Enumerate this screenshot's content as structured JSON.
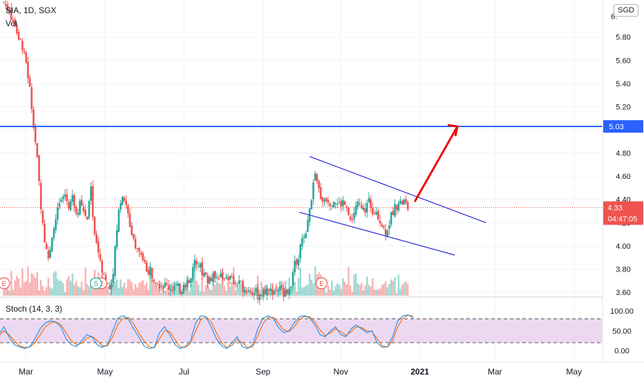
{
  "header": {
    "symbol_line": "SIA, 1D, SGX",
    "volume_label": "Vol",
    "currency": "SGD",
    "stoch_label": "Stoch (14, 3, 3)"
  },
  "colors": {
    "up": "#26a69a",
    "down": "#ef5350",
    "resistance": "#2962ff",
    "channel": "#2626d6",
    "arrow": "#f20000",
    "stoch_k": "#2196f3",
    "stoch_d": "#ff6d00",
    "stoch_band": "#e1bee7"
  },
  "chart_data": {
    "type": "candlestick",
    "price_axis": {
      "ticks": [
        3.6,
        3.8,
        4.0,
        4.2,
        4.4,
        4.6,
        4.8,
        5.0,
        5.2,
        5.4,
        5.6,
        5.8
      ],
      "tick_labels": [
        "3.60",
        "3.80",
        "4.00",
        "4.20",
        "4.40",
        "4.60",
        "4.80",
        "5.00",
        "5.20",
        "5.40",
        "5.60",
        "5.80"
      ],
      "top_partial_label": "6.",
      "range": [
        3.57,
        6.12
      ]
    },
    "time_axis": {
      "labels": [
        "Mar",
        "May",
        "Jul",
        "Sep",
        "Nov",
        "2021",
        "Mar",
        "May"
      ],
      "label_days": [
        35,
        96,
        157,
        218,
        278,
        339,
        397,
        458
      ],
      "range_days": [
        15,
        480
      ]
    },
    "price_path": [
      [
        18,
        6.1
      ],
      [
        22,
        6.02
      ],
      [
        26,
        5.95
      ],
      [
        30,
        5.78
      ],
      [
        34,
        5.68
      ],
      [
        38,
        5.35
      ],
      [
        41,
        5.05
      ],
      [
        44,
        4.7
      ],
      [
        47,
        4.3
      ],
      [
        50,
        4.0
      ],
      [
        53,
        3.87
      ],
      [
        56,
        4.1
      ],
      [
        59,
        4.3
      ],
      [
        62,
        4.38
      ],
      [
        65,
        4.45
      ],
      [
        68,
        4.35
      ],
      [
        71,
        4.42
      ],
      [
        74,
        4.3
      ],
      [
        78,
        4.38
      ],
      [
        82,
        4.2
      ],
      [
        85,
        4.5
      ],
      [
        88,
        4.1
      ],
      [
        91,
        3.95
      ],
      [
        94,
        3.8
      ],
      [
        97,
        3.68
      ],
      [
        100,
        3.62
      ],
      [
        103,
        3.85
      ],
      [
        106,
        4.25
      ],
      [
        109,
        4.45
      ],
      [
        112,
        4.38
      ],
      [
        115,
        4.18
      ],
      [
        118,
        4.07
      ],
      [
        121,
        3.98
      ],
      [
        124,
        3.88
      ],
      [
        127,
        3.83
      ],
      [
        131,
        3.78
      ],
      [
        135,
        3.72
      ],
      [
        138,
        3.68
      ],
      [
        142,
        3.66
      ],
      [
        146,
        3.64
      ],
      [
        150,
        3.65
      ],
      [
        154,
        3.62
      ],
      [
        158,
        3.66
      ],
      [
        162,
        3.68
      ],
      [
        166,
        3.9
      ],
      [
        170,
        3.8
      ],
      [
        174,
        3.72
      ],
      [
        178,
        3.7
      ],
      [
        182,
        3.77
      ],
      [
        186,
        3.73
      ],
      [
        190,
        3.75
      ],
      [
        194,
        3.7
      ],
      [
        198,
        3.67
      ],
      [
        202,
        3.65
      ],
      [
        206,
        3.62
      ],
      [
        210,
        3.6
      ],
      [
        214,
        3.58
      ],
      [
        218,
        3.58
      ],
      [
        222,
        3.6
      ],
      [
        226,
        3.62
      ],
      [
        230,
        3.63
      ],
      [
        234,
        3.6
      ],
      [
        238,
        3.62
      ],
      [
        240,
        3.7
      ],
      [
        243,
        3.85
      ],
      [
        246,
        3.95
      ],
      [
        249,
        4.05
      ],
      [
        252,
        4.15
      ],
      [
        255,
        4.4
      ],
      [
        258,
        4.6
      ],
      [
        261,
        4.48
      ],
      [
        264,
        4.4
      ],
      [
        267,
        4.42
      ],
      [
        270,
        4.38
      ],
      [
        273,
        4.4
      ],
      [
        276,
        4.35
      ],
      [
        279,
        4.37
      ],
      [
        282,
        4.4
      ],
      [
        285,
        4.2
      ],
      [
        288,
        4.28
      ],
      [
        291,
        4.35
      ],
      [
        294,
        4.3
      ],
      [
        297,
        4.32
      ],
      [
        300,
        4.38
      ],
      [
        303,
        4.3
      ],
      [
        306,
        4.28
      ],
      [
        309,
        4.22
      ],
      [
        312,
        4.12
      ],
      [
        315,
        4.18
      ],
      [
        318,
        4.3
      ],
      [
        321,
        4.35
      ],
      [
        324,
        4.37
      ],
      [
        327,
        4.38
      ],
      [
        330,
        4.32
      ]
    ],
    "volume_series": [],
    "resistance": {
      "value": 5.03,
      "label": "5.03"
    },
    "last_price": {
      "value": 4.33,
      "label": "4.33",
      "countdown": "04:47:05"
    },
    "channel_lines": [
      {
        "from": [
          254,
          4.77
        ],
        "to": [
          390,
          4.2
        ]
      },
      {
        "from": [
          246,
          4.29
        ],
        "to": [
          366,
          3.92
        ]
      }
    ],
    "arrow": {
      "from": [
        335,
        4.38
      ],
      "to": [
        368,
        5.03
      ]
    },
    "earnings_markers": {
      "label": "E",
      "days": [
        15,
        90,
        260
      ]
    },
    "split_marker": {
      "label": "S",
      "day": 88
    },
    "stochastic": {
      "ticks": [
        0,
        50,
        100
      ],
      "tick_labels": [
        "0.00",
        "50.00",
        "100.00"
      ],
      "overbought": 80,
      "oversold": 20,
      "k_path": [
        [
          15,
          45
        ],
        [
          18,
          60
        ],
        [
          22,
          35
        ],
        [
          26,
          15
        ],
        [
          30,
          10
        ],
        [
          34,
          5
        ],
        [
          38,
          10
        ],
        [
          42,
          30
        ],
        [
          46,
          55
        ],
        [
          50,
          70
        ],
        [
          54,
          75
        ],
        [
          58,
          72
        ],
        [
          62,
          60
        ],
        [
          66,
          30
        ],
        [
          70,
          15
        ],
        [
          74,
          10
        ],
        [
          78,
          25
        ],
        [
          82,
          40
        ],
        [
          86,
          35
        ],
        [
          90,
          15
        ],
        [
          94,
          8
        ],
        [
          98,
          15
        ],
        [
          102,
          50
        ],
        [
          106,
          82
        ],
        [
          110,
          88
        ],
        [
          114,
          80
        ],
        [
          118,
          55
        ],
        [
          122,
          35
        ],
        [
          126,
          12
        ],
        [
          130,
          5
        ],
        [
          134,
          8
        ],
        [
          138,
          45
        ],
        [
          142,
          60
        ],
        [
          146,
          40
        ],
        [
          150,
          15
        ],
        [
          154,
          5
        ],
        [
          158,
          10
        ],
        [
          162,
          25
        ],
        [
          166,
          70
        ],
        [
          170,
          88
        ],
        [
          174,
          85
        ],
        [
          178,
          60
        ],
        [
          182,
          30
        ],
        [
          186,
          12
        ],
        [
          190,
          5
        ],
        [
          194,
          20
        ],
        [
          198,
          35
        ],
        [
          202,
          10
        ],
        [
          206,
          5
        ],
        [
          210,
          15
        ],
        [
          214,
          55
        ],
        [
          218,
          82
        ],
        [
          222,
          88
        ],
        [
          226,
          80
        ],
        [
          230,
          58
        ],
        [
          234,
          45
        ],
        [
          238,
          50
        ],
        [
          242,
          70
        ],
        [
          246,
          85
        ],
        [
          250,
          88
        ],
        [
          254,
          82
        ],
        [
          258,
          65
        ],
        [
          262,
          40
        ],
        [
          266,
          35
        ],
        [
          270,
          50
        ],
        [
          274,
          60
        ],
        [
          278,
          40
        ],
        [
          282,
          35
        ],
        [
          286,
          55
        ],
        [
          290,
          65
        ],
        [
          294,
          55
        ],
        [
          298,
          45
        ],
        [
          302,
          50
        ],
        [
          306,
          20
        ],
        [
          310,
          8
        ],
        [
          314,
          10
        ],
        [
          318,
          35
        ],
        [
          322,
          75
        ],
        [
          326,
          88
        ],
        [
          330,
          90
        ],
        [
          334,
          82
        ]
      ],
      "d_path": [
        [
          15,
          40
        ],
        [
          18,
          50
        ],
        [
          22,
          40
        ],
        [
          26,
          25
        ],
        [
          30,
          12
        ],
        [
          34,
          8
        ],
        [
          38,
          9
        ],
        [
          42,
          20
        ],
        [
          46,
          40
        ],
        [
          50,
          60
        ],
        [
          54,
          70
        ],
        [
          58,
          72
        ],
        [
          62,
          66
        ],
        [
          66,
          45
        ],
        [
          70,
          25
        ],
        [
          74,
          15
        ],
        [
          78,
          18
        ],
        [
          82,
          32
        ],
        [
          86,
          36
        ],
        [
          90,
          25
        ],
        [
          94,
          12
        ],
        [
          98,
          12
        ],
        [
          102,
          35
        ],
        [
          106,
          65
        ],
        [
          110,
          82
        ],
        [
          114,
          84
        ],
        [
          118,
          68
        ],
        [
          122,
          45
        ],
        [
          126,
          25
        ],
        [
          130,
          10
        ],
        [
          134,
          7
        ],
        [
          138,
          30
        ],
        [
          142,
          50
        ],
        [
          146,
          48
        ],
        [
          150,
          28
        ],
        [
          154,
          10
        ],
        [
          158,
          8
        ],
        [
          162,
          18
        ],
        [
          166,
          50
        ],
        [
          170,
          78
        ],
        [
          174,
          86
        ],
        [
          178,
          72
        ],
        [
          182,
          45
        ],
        [
          186,
          20
        ],
        [
          190,
          8
        ],
        [
          194,
          13
        ],
        [
          198,
          28
        ],
        [
          202,
          20
        ],
        [
          206,
          8
        ],
        [
          210,
          10
        ],
        [
          214,
          38
        ],
        [
          218,
          68
        ],
        [
          222,
          84
        ],
        [
          226,
          84
        ],
        [
          230,
          68
        ],
        [
          234,
          52
        ],
        [
          238,
          48
        ],
        [
          242,
          60
        ],
        [
          246,
          78
        ],
        [
          250,
          86
        ],
        [
          254,
          85
        ],
        [
          258,
          72
        ],
        [
          262,
          52
        ],
        [
          266,
          38
        ],
        [
          270,
          45
        ],
        [
          274,
          55
        ],
        [
          278,
          48
        ],
        [
          282,
          38
        ],
        [
          286,
          48
        ],
        [
          290,
          60
        ],
        [
          294,
          58
        ],
        [
          298,
          50
        ],
        [
          302,
          48
        ],
        [
          306,
          30
        ],
        [
          310,
          12
        ],
        [
          314,
          9
        ],
        [
          318,
          25
        ],
        [
          322,
          60
        ],
        [
          326,
          82
        ],
        [
          330,
          89
        ],
        [
          334,
          86
        ]
      ]
    }
  }
}
